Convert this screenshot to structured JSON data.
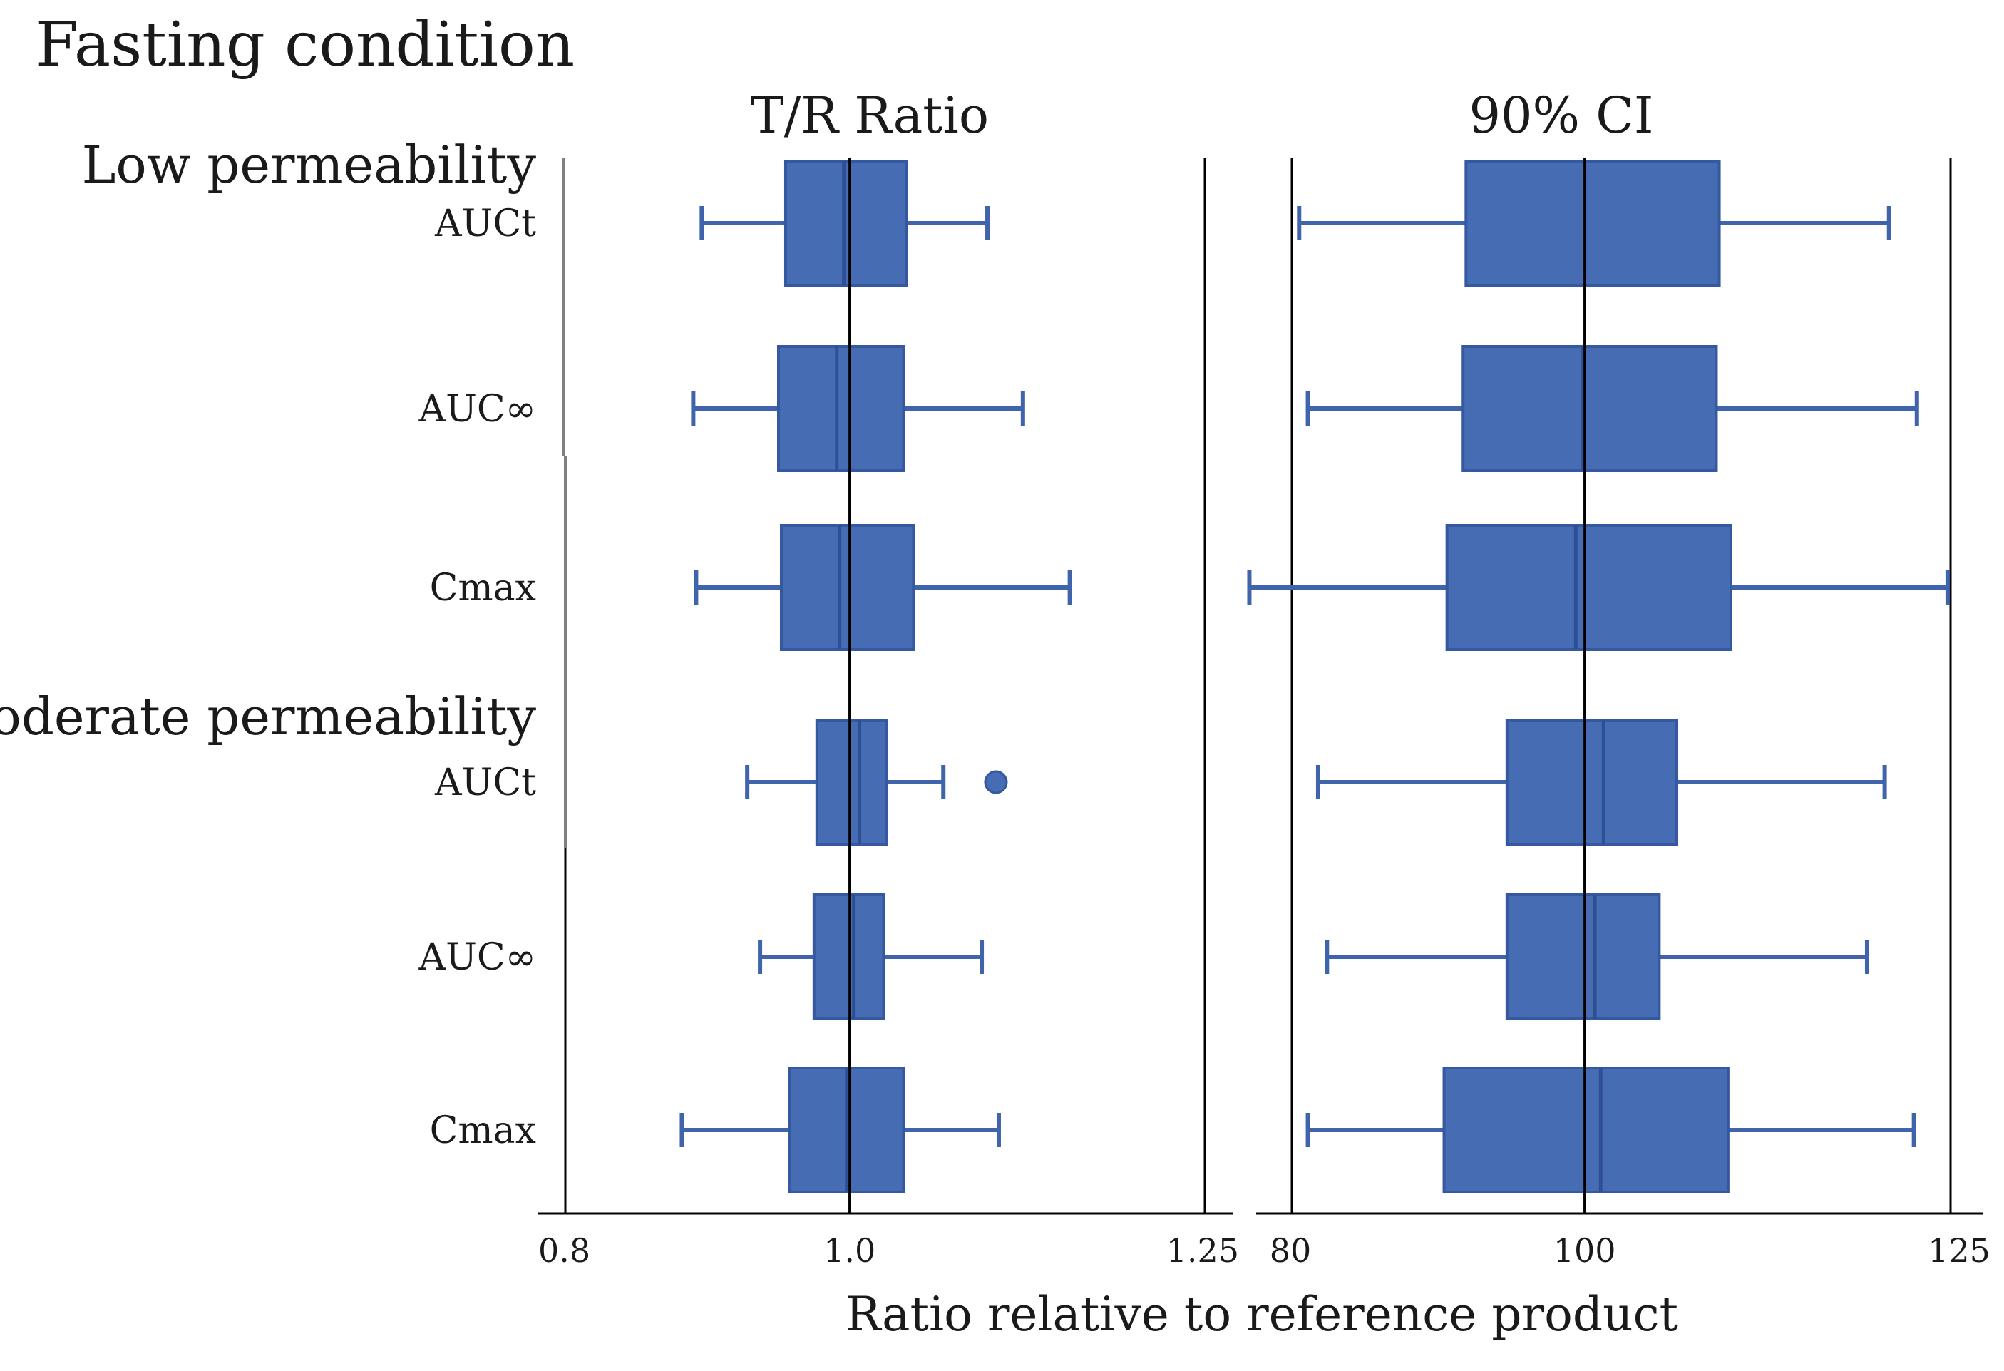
{
  "chart_data": {
    "type": "boxplot",
    "title": "Fasting condition",
    "xlabel": "Ratio relative to reference product",
    "groups": [
      {
        "name": "Low permeability",
        "rows": [
          "AUCt",
          "AUC∞",
          "Cmax"
        ]
      },
      {
        "name": "Moderate permeability",
        "rows": [
          "AUCt",
          "AUC∞",
          "Cmax"
        ]
      }
    ],
    "panels": [
      {
        "title": "T/R Ratio",
        "xlim": [
          0.8,
          1.25
        ],
        "ticks": [
          0.8,
          1.0,
          1.25
        ],
        "tick_labels": [
          "0.8",
          "1.0",
          "1.25"
        ],
        "reference_lines": [
          1.0,
          1.25
        ],
        "boxes": [
          {
            "group": "Low permeability",
            "label": "AUCt",
            "whisker_low": 0.896,
            "q1": 0.955,
            "median": 0.996,
            "q3": 1.04,
            "whisker_high": 1.097
          },
          {
            "group": "Low permeability",
            "label": "AUC∞",
            "whisker_low": 0.89,
            "q1": 0.95,
            "median": 0.991,
            "q3": 1.038,
            "whisker_high": 1.122
          },
          {
            "group": "Low permeability",
            "label": "Cmax",
            "whisker_low": 0.892,
            "q1": 0.952,
            "median": 0.993,
            "q3": 1.045,
            "whisker_high": 1.155
          },
          {
            "group": "Moderate permeability",
            "label": "AUCt",
            "whisker_low": 0.928,
            "q1": 0.977,
            "median": 1.007,
            "q3": 1.026,
            "whisker_high": 1.066,
            "outliers": [
              1.103
            ]
          },
          {
            "group": "Moderate permeability",
            "label": "AUC∞",
            "whisker_low": 0.937,
            "q1": 0.975,
            "median": 1.003,
            "q3": 1.024,
            "whisker_high": 1.093
          },
          {
            "group": "Moderate permeability",
            "label": "Cmax",
            "whisker_low": 0.882,
            "q1": 0.958,
            "median": 0.998,
            "q3": 1.038,
            "whisker_high": 1.105
          }
        ]
      },
      {
        "title": "90% CI",
        "xlim": [
          80,
          125
        ],
        "ticks": [
          80,
          100,
          125
        ],
        "tick_labels": [
          "80",
          "100",
          "125"
        ],
        "reference_lines": [
          80,
          100,
          125
        ],
        "boxes": [
          {
            "group": "Low permeability",
            "label": "AUCt",
            "whisker_low": 80.5,
            "q1": 91.9,
            "median": 100.0,
            "q3": 109.2,
            "whisker_high": 120.8
          },
          {
            "group": "Low permeability",
            "label": "AUC∞",
            "whisker_low": 81.1,
            "q1": 91.7,
            "median": 99.9,
            "q3": 109.0,
            "whisker_high": 122.7
          },
          {
            "group": "Low permeability",
            "label": "Cmax",
            "whisker_low": 77.1,
            "q1": 90.6,
            "median": 99.4,
            "q3": 110.0,
            "whisker_high": 124.8
          },
          {
            "group": "Moderate permeability",
            "label": "AUCt",
            "whisker_low": 81.8,
            "q1": 94.7,
            "median": 101.3,
            "q3": 106.3,
            "whisker_high": 120.5
          },
          {
            "group": "Moderate permeability",
            "label": "AUC∞",
            "whisker_low": 82.4,
            "q1": 94.7,
            "median": 100.7,
            "q3": 105.1,
            "whisker_high": 119.3
          },
          {
            "group": "Moderate permeability",
            "label": "Cmax",
            "whisker_low": 81.1,
            "q1": 90.4,
            "median": 101.1,
            "q3": 109.8,
            "whisker_high": 122.5
          }
        ]
      }
    ],
    "colors": {
      "box_fill": "#466db3",
      "box_edge": "#3558a0",
      "median": "#2e4f95",
      "whisker": "#4064ac"
    }
  }
}
